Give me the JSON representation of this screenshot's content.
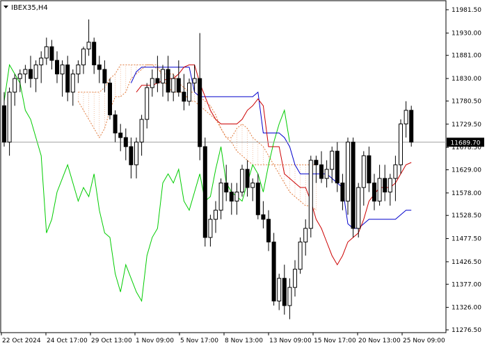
{
  "window": {
    "symbol_label": "IBEX35,H4",
    "menu_icon": "triangle-down-icon"
  },
  "price_tag": {
    "value": "11689.70",
    "price": 11689.7
  },
  "colors": {
    "background": "#ffffff",
    "axis": "#000000",
    "candle": "#000000",
    "tenkan": "#cc0000",
    "kijun": "#0000cc",
    "chikou": "#00cc00",
    "senkou_span": "#e07a3c",
    "cloud": "#e07a3c",
    "current_price_line": "#a0a0a0"
  },
  "chart_data": {
    "type": "candlestick",
    "title": "IBEX35,H4",
    "indicator": "Ichimoku Kinko Hyo",
    "y_ticks": [
      11981.5,
      11930.0,
      11881.0,
      11830.0,
      11780.5,
      11729.5,
      11678.5,
      11629.0,
      11578.0,
      11528.5,
      11477.5,
      11426.5,
      11377.0,
      11326.0,
      11276.5
    ],
    "y_tick_labels": [
      "11981.50",
      "11930.00",
      "11881.00",
      "11830.00",
      "11780.50",
      "11729.50",
      "11678.50",
      "11629.00",
      "11578.00",
      "11528.50",
      "11477.50",
      "11426.50",
      "11377.00",
      "11326.00",
      "11276.50"
    ],
    "x_tick_labels": [
      "22 Oct 2024",
      "24 Oct 17:00",
      "29 Oct 13:00",
      "1 Nov 09:00",
      "5 Nov 17:00",
      "8 Nov 13:00",
      "13 Nov 09:00",
      "15 Nov 17:00",
      "20 Nov 13:00",
      "25 Nov 09:00"
    ],
    "ylim": [
      11265,
      11995
    ],
    "current_price": 11689.7,
    "candles": [
      [
        11770,
        11800,
        11680,
        11690
      ],
      [
        11690,
        11810,
        11660,
        11800
      ],
      [
        11800,
        11840,
        11770,
        11830
      ],
      [
        11830,
        11850,
        11800,
        11840
      ],
      [
        11840,
        11860,
        11820,
        11850
      ],
      [
        11850,
        11880,
        11810,
        11830
      ],
      [
        11830,
        11870,
        11800,
        11860
      ],
      [
        11860,
        11890,
        11820,
        11875
      ],
      [
        11875,
        11920,
        11860,
        11900
      ],
      [
        11900,
        11915,
        11850,
        11870
      ],
      [
        11870,
        11890,
        11820,
        11840
      ],
      [
        11840,
        11870,
        11790,
        11860
      ],
      [
        11860,
        11880,
        11780,
        11800
      ],
      [
        11800,
        11850,
        11770,
        11840
      ],
      [
        11840,
        11870,
        11820,
        11860
      ],
      [
        11860,
        11900,
        11840,
        11895
      ],
      [
        11895,
        11960,
        11880,
        11910
      ],
      [
        11910,
        11920,
        11840,
        11860
      ],
      [
        11860,
        11880,
        11820,
        11850
      ],
      [
        11850,
        11870,
        11800,
        11820
      ],
      [
        11820,
        11830,
        11740,
        11750
      ],
      [
        11750,
        11760,
        11690,
        11710
      ],
      [
        11710,
        11730,
        11670,
        11700
      ],
      [
        11700,
        11720,
        11650,
        11680
      ],
      [
        11680,
        11700,
        11610,
        11640
      ],
      [
        11640,
        11700,
        11610,
        11690
      ],
      [
        11690,
        11750,
        11660,
        11740
      ],
      [
        11740,
        11820,
        11720,
        11810
      ],
      [
        11810,
        11850,
        11790,
        11830
      ],
      [
        11830,
        11880,
        11800,
        11820
      ],
      [
        11820,
        11860,
        11790,
        11850
      ],
      [
        11850,
        11880,
        11780,
        11800
      ],
      [
        11800,
        11840,
        11780,
        11830
      ],
      [
        11830,
        11870,
        11790,
        11800
      ],
      [
        11800,
        11840,
        11760,
        11780
      ],
      [
        11780,
        11830,
        11770,
        11820
      ],
      [
        11820,
        11860,
        11800,
        11830
      ],
      [
        11830,
        11930,
        11650,
        11680
      ],
      [
        11680,
        11700,
        11460,
        11480
      ],
      [
        11480,
        11530,
        11460,
        11520
      ],
      [
        11520,
        11560,
        11490,
        11540
      ],
      [
        11540,
        11610,
        11520,
        11600
      ],
      [
        11600,
        11640,
        11560,
        11580
      ],
      [
        11580,
        11600,
        11530,
        11560
      ],
      [
        11560,
        11600,
        11530,
        11580
      ],
      [
        11580,
        11640,
        11570,
        11630
      ],
      [
        11630,
        11650,
        11570,
        11590
      ],
      [
        11590,
        11610,
        11560,
        11600
      ],
      [
        11600,
        11620,
        11520,
        11530
      ],
      [
        11530,
        11560,
        11500,
        11520
      ],
      [
        11520,
        11540,
        11450,
        11470
      ],
      [
        11470,
        11490,
        11330,
        11340
      ],
      [
        11340,
        11400,
        11320,
        11390
      ],
      [
        11390,
        11420,
        11310,
        11330
      ],
      [
        11330,
        11390,
        11300,
        11370
      ],
      [
        11370,
        11430,
        11350,
        11410
      ],
      [
        11410,
        11480,
        11400,
        11470
      ],
      [
        11470,
        11520,
        11440,
        11500
      ],
      [
        11500,
        11660,
        11480,
        11650
      ],
      [
        11650,
        11660,
        11600,
        11640
      ],
      [
        11640,
        11670,
        11600,
        11610
      ],
      [
        11610,
        11650,
        11590,
        11630
      ],
      [
        11630,
        11680,
        11600,
        11670
      ],
      [
        11670,
        11690,
        11580,
        11600
      ],
      [
        11600,
        11620,
        11540,
        11560
      ],
      [
        11560,
        11700,
        11530,
        11690
      ],
      [
        11690,
        11700,
        11480,
        11500
      ],
      [
        11500,
        11600,
        11480,
        11590
      ],
      [
        11590,
        11670,
        11550,
        11660
      ],
      [
        11660,
        11680,
        11580,
        11600
      ],
      [
        11600,
        11620,
        11540,
        11560
      ],
      [
        11560,
        11640,
        11550,
        11610
      ],
      [
        11610,
        11640,
        11560,
        11580
      ],
      [
        11580,
        11620,
        11550,
        11610
      ],
      [
        11610,
        11660,
        11560,
        11640
      ],
      [
        11640,
        11740,
        11620,
        11730
      ],
      [
        11730,
        11780,
        11700,
        11760
      ],
      [
        11760,
        11770,
        11680,
        11690
      ]
    ],
    "tenkan_sen": [
      11800,
      11815,
      11815,
      11815,
      11820,
      11825,
      11830,
      11830,
      11840,
      11855,
      11860,
      11860,
      11820,
      11790,
      11760,
      11740,
      11730,
      11730,
      11730,
      11730,
      11740,
      11760,
      11770,
      11785,
      11770,
      11680,
      11680,
      11680,
      11620,
      11610,
      11600,
      11590,
      11590,
      11560,
      11520,
      11500,
      11470,
      11440,
      11420,
      11440,
      11470,
      11480,
      11490,
      11520,
      11560,
      11575,
      11590,
      11590,
      11590,
      11600,
      11620,
      11640,
      11645
    ],
    "kijun_sen": [
      11820,
      11845,
      11855,
      11855,
      11855,
      11855,
      11855,
      11855,
      11855,
      11855,
      11855,
      11855,
      11800,
      11790,
      11790,
      11790,
      11790,
      11790,
      11790,
      11790,
      11790,
      11790,
      11790,
      11790,
      11800,
      11710,
      11710,
      11710,
      11710,
      11700,
      11680,
      11640,
      11620,
      11620,
      11620,
      11620,
      11620,
      11620,
      11610,
      11600,
      11590,
      11510,
      11500,
      11500,
      11510,
      11520,
      11520,
      11520,
      11520,
      11520,
      11520,
      11530,
      11540,
      11540
    ],
    "chikou_span": [
      11780,
      11860,
      11840,
      11820,
      11760,
      11740,
      11700,
      11660,
      11490,
      11520,
      11580,
      11610,
      11640,
      11600,
      11560,
      11590,
      11570,
      11620,
      11540,
      11490,
      11480,
      11400,
      11360,
      11420,
      11390,
      11360,
      11340,
      11440,
      11480,
      11500,
      11600,
      11620,
      11600,
      11630,
      11560,
      11540,
      11580,
      11620,
      11560,
      11570,
      11630,
      11680,
      11600,
      11580,
      11570,
      11560,
      11600,
      11640,
      11620,
      11580,
      11640,
      11690,
      11730,
      11760,
      11690
    ],
    "senkou_span_a": [
      11780,
      11760,
      11740,
      11720,
      11700,
      11720,
      11760,
      11790,
      11790,
      11800,
      11830,
      11840,
      11850,
      11860,
      11860,
      11860,
      11830,
      11810,
      11800,
      11800,
      11800,
      11780,
      11780,
      11770,
      11760,
      11750,
      11740,
      11720,
      11700,
      11700,
      11720,
      11730,
      11720,
      11700,
      11690,
      11680,
      11660,
      11640,
      11620,
      11600,
      11580,
      11570,
      11560,
      11550,
      11550,
      11540
    ],
    "senkou_span_b": [
      11800,
      11800,
      11800,
      11800,
      11800,
      11810,
      11830,
      11840,
      11860,
      11860,
      11860,
      11860,
      11860,
      11860,
      11860,
      11850,
      11840,
      11840,
      11840,
      11820,
      11810,
      11800,
      11800,
      11790,
      11780,
      11770,
      11750,
      11720,
      11700,
      11690,
      11670,
      11660,
      11650,
      11640,
      11640,
      11640,
      11640,
      11640,
      11640,
      11640,
      11640,
      11640,
      11640,
      11640,
      11640,
      11640
    ]
  }
}
